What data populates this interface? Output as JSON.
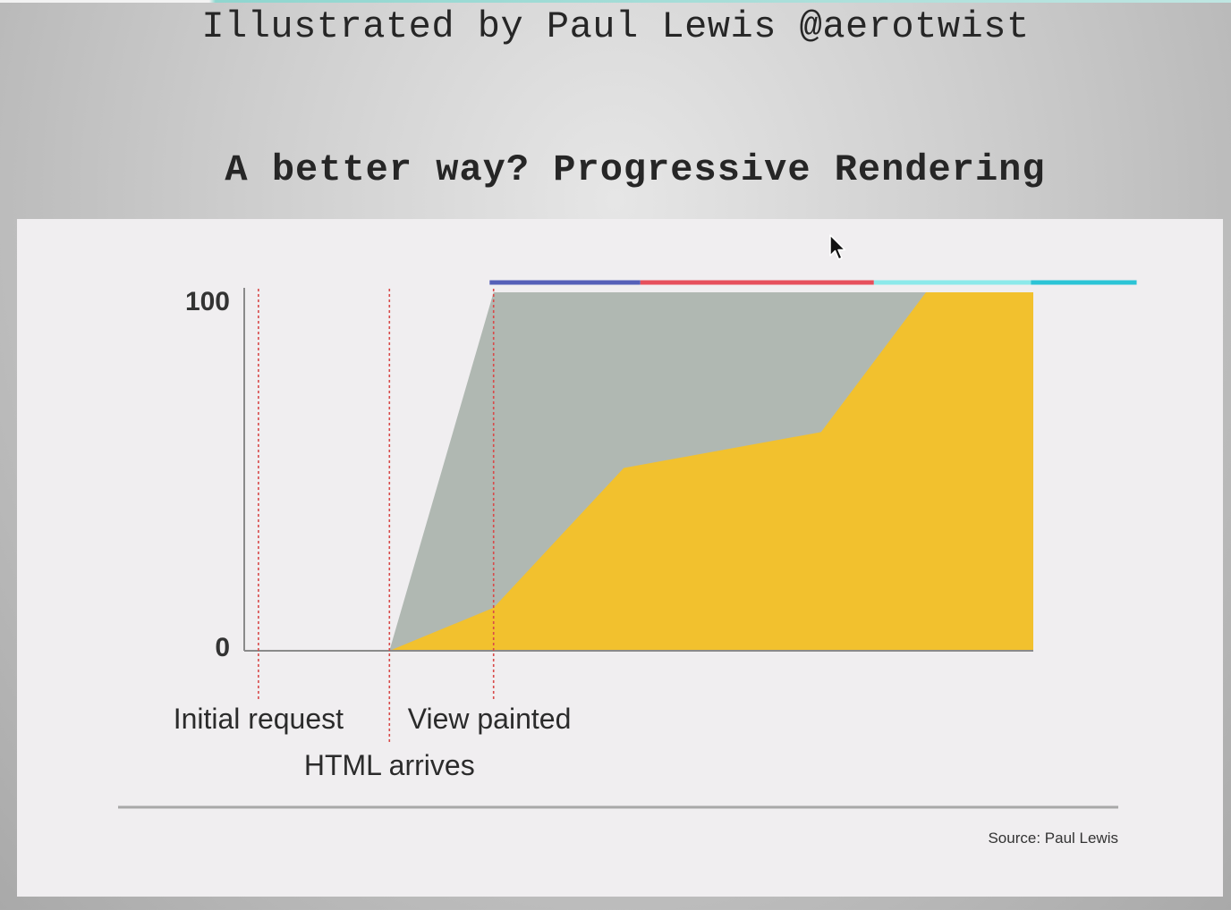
{
  "slide": {
    "credit": "Illustrated by Paul Lewis @aerotwist",
    "title": "A better way? Progressive Rendering"
  },
  "chart_data": {
    "type": "area",
    "title": "",
    "xlabel": "",
    "ylabel": "",
    "ylim": [
      0,
      100
    ],
    "xlim": [
      0,
      100
    ],
    "y_ticks": [
      "0",
      "100"
    ],
    "grid": false,
    "legend": "none",
    "series": [
      {
        "color": "#b0b8b2",
        "x": [
          0,
          18.4,
          31.6,
          100
        ],
        "y": [
          0,
          0,
          100,
          100
        ]
      },
      {
        "color": "#f2c12e",
        "x": [
          0,
          18.4,
          31.6,
          48.1,
          73.1,
          86.4,
          100
        ],
        "y": [
          0,
          0,
          12,
          51,
          61,
          100,
          100
        ]
      }
    ],
    "markers": [
      {
        "x": 1.8,
        "label": "Initial request",
        "color": "#d84a4a"
      },
      {
        "x": 18.4,
        "label": "HTML arrives",
        "color": "#d84a4a"
      },
      {
        "x": 31.6,
        "label": "View painted",
        "color": "#d84a4a"
      }
    ],
    "top_bar": [
      {
        "from": 31.1,
        "to": 50.2,
        "color": "#5560b8"
      },
      {
        "from": 50.2,
        "to": 79.8,
        "color": "#e6505c"
      },
      {
        "from": 79.8,
        "to": 99.7,
        "color": "#8ce9ea"
      },
      {
        "from": 99.7,
        "to": 113.1,
        "color": "#2cc4d6"
      }
    ],
    "source": "Source: Paul Lewis"
  },
  "cursor": {
    "icon": "mouse-pointer-icon"
  }
}
